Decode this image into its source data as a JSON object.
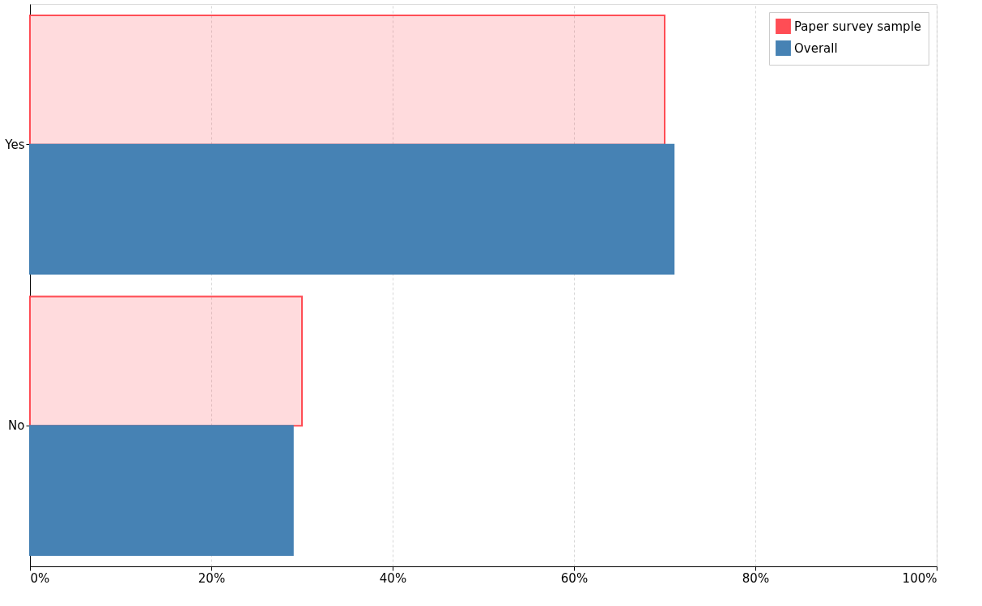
{
  "chart_data": {
    "type": "bar",
    "orientation": "horizontal",
    "categories": [
      "Yes",
      "No"
    ],
    "series": [
      {
        "name": "Paper survey sample",
        "color": "#ff4d55",
        "values": [
          70,
          30
        ]
      },
      {
        "name": "Overall",
        "color": "#4682b4",
        "values": [
          71,
          29
        ]
      }
    ],
    "xlim": [
      0,
      100
    ],
    "xticks": [
      {
        "value": 0,
        "label": "0%"
      },
      {
        "value": 20,
        "label": "20%"
      },
      {
        "value": 40,
        "label": "40%"
      },
      {
        "value": 60,
        "label": "60%"
      },
      {
        "value": 80,
        "label": "80%"
      },
      {
        "value": 100,
        "label": "100%"
      }
    ],
    "grid": "x",
    "legend": "top right"
  }
}
